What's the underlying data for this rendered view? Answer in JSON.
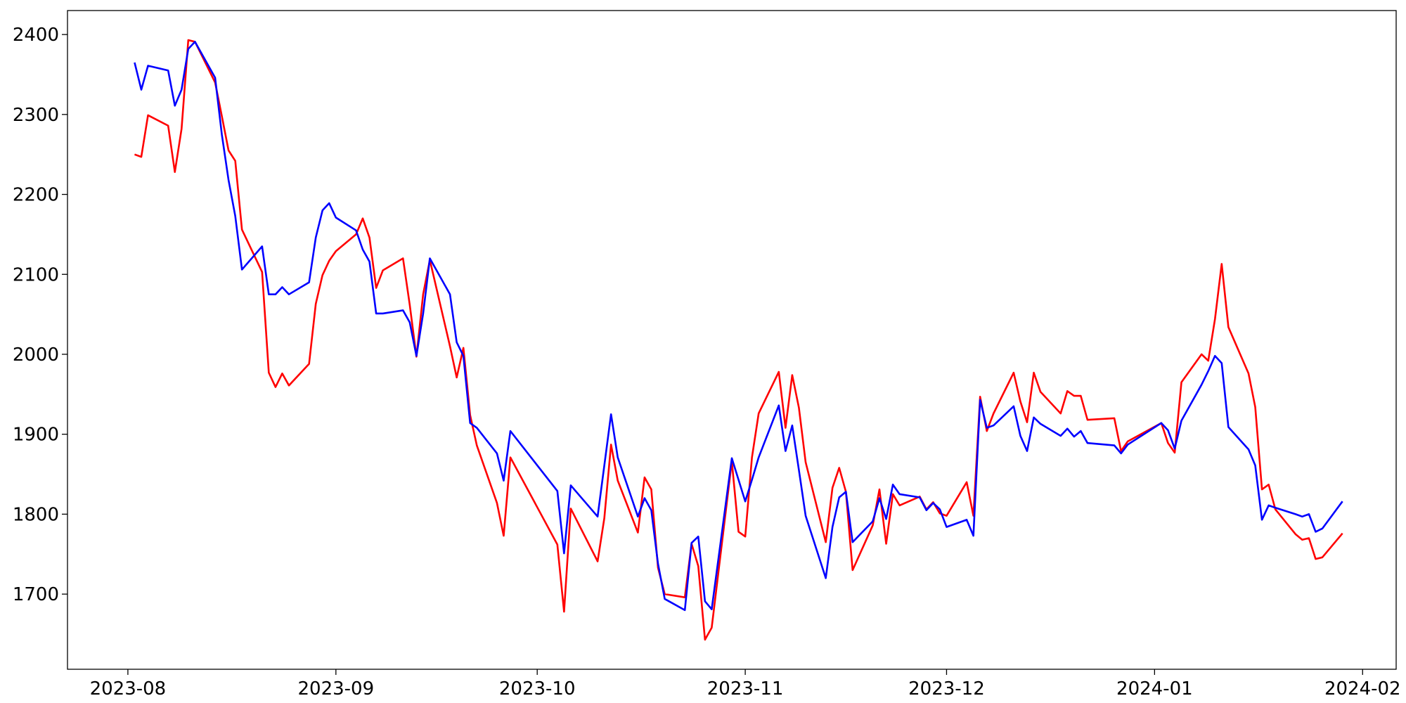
{
  "chart_data": {
    "type": "line",
    "x": [
      "2023-08-02",
      "2023-08-03",
      "2023-08-04",
      "2023-08-07",
      "2023-08-08",
      "2023-08-09",
      "2023-08-10",
      "2023-08-11",
      "2023-08-14",
      "2023-08-15",
      "2023-08-16",
      "2023-08-17",
      "2023-08-18",
      "2023-08-21",
      "2023-08-22",
      "2023-08-23",
      "2023-08-24",
      "2023-08-25",
      "2023-08-28",
      "2023-08-29",
      "2023-08-30",
      "2023-08-31",
      "2023-09-01",
      "2023-09-04",
      "2023-09-05",
      "2023-09-06",
      "2023-09-07",
      "2023-09-08",
      "2023-09-11",
      "2023-09-12",
      "2023-09-13",
      "2023-09-14",
      "2023-09-15",
      "2023-09-18",
      "2023-09-19",
      "2023-09-20",
      "2023-09-21",
      "2023-09-22",
      "2023-09-25",
      "2023-09-26",
      "2023-09-27",
      "2023-10-04",
      "2023-10-05",
      "2023-10-06",
      "2023-10-10",
      "2023-10-11",
      "2023-10-12",
      "2023-10-13",
      "2023-10-16",
      "2023-10-17",
      "2023-10-18",
      "2023-10-19",
      "2023-10-20",
      "2023-10-23",
      "2023-10-24",
      "2023-10-25",
      "2023-10-26",
      "2023-10-27",
      "2023-10-30",
      "2023-10-31",
      "2023-11-01",
      "2023-11-02",
      "2023-11-03",
      "2023-11-06",
      "2023-11-07",
      "2023-11-08",
      "2023-11-09",
      "2023-11-10",
      "2023-11-13",
      "2023-11-14",
      "2023-11-15",
      "2023-11-16",
      "2023-11-17",
      "2023-11-20",
      "2023-11-21",
      "2023-11-22",
      "2023-11-23",
      "2023-11-24",
      "2023-11-27",
      "2023-11-28",
      "2023-11-29",
      "2023-11-30",
      "2023-12-01",
      "2023-12-04",
      "2023-12-05",
      "2023-12-06",
      "2023-12-07",
      "2023-12-08",
      "2023-12-11",
      "2023-12-12",
      "2023-12-13",
      "2023-12-14",
      "2023-12-15",
      "2023-12-18",
      "2023-12-19",
      "2023-12-20",
      "2023-12-21",
      "2023-12-22",
      "2023-12-26",
      "2023-12-27",
      "2023-12-28",
      "2024-01-02",
      "2024-01-03",
      "2024-01-04",
      "2024-01-05",
      "2024-01-08",
      "2024-01-09",
      "2024-01-10",
      "2024-01-11",
      "2024-01-12",
      "2024-01-15",
      "2024-01-16",
      "2024-01-17",
      "2024-01-18",
      "2024-01-19",
      "2024-01-22",
      "2024-01-23",
      "2024-01-24",
      "2024-01-25",
      "2024-01-26",
      "2024-01-29"
    ],
    "series": [
      {
        "color": "#ff0000",
        "values": [
          2250,
          2247,
          2299,
          2286,
          2228,
          2282,
          2393,
          2391,
          2340,
          2298,
          2255,
          2242,
          2156,
          2103,
          1977,
          1959,
          1976,
          1961,
          1988,
          2063,
          2099,
          2117,
          2129,
          2150,
          2170,
          2146,
          2083,
          2105,
          2120,
          2062,
          1997,
          2075,
          2118,
          2010,
          1971,
          2008,
          1924,
          1886,
          1814,
          1773,
          1871,
          1762,
          1678,
          1807,
          1741,
          1795,
          1887,
          1842,
          1777,
          1846,
          1831,
          1733,
          1700,
          1696,
          1763,
          1735,
          1643,
          1658,
          1866,
          1778,
          1772,
          1871,
          1926,
          1978,
          1908,
          1974,
          1933,
          1865,
          1765,
          1833,
          1858,
          1828,
          1730,
          1786,
          1831,
          1763,
          1825,
          1811,
          1822,
          1806,
          1815,
          1801,
          1798,
          1840,
          1798,
          1947,
          1904,
          1926,
          1977,
          1941,
          1915,
          1977,
          1953,
          1926,
          1954,
          1948,
          1948,
          1918,
          1920,
          1879,
          1891,
          1914,
          1889,
          1877,
          1965,
          2000,
          1992,
          2044,
          2113,
          2034,
          1976,
          1934,
          1831,
          1837,
          1806,
          1775,
          1768,
          1770,
          1744,
          1746,
          1776
        ]
      },
      {
        "color": "#0000ff",
        "values": [
          2365,
          2331,
          2361,
          2355,
          2311,
          2331,
          2382,
          2391,
          2346,
          2275,
          2218,
          2173,
          2106,
          2135,
          2075,
          2075,
          2084,
          2075,
          2090,
          2146,
          2180,
          2189,
          2171,
          2155,
          2131,
          2116,
          2051,
          2051,
          2055,
          2040,
          1998,
          2051,
          2120,
          2075,
          2015,
          1998,
          1914,
          1908,
          1876,
          1842,
          1904,
          1829,
          1751,
          1836,
          1797,
          1861,
          1925,
          1871,
          1797,
          1820,
          1805,
          1738,
          1694,
          1680,
          1764,
          1772,
          1691,
          1681,
          1870,
          1843,
          1816,
          1843,
          1871,
          1936,
          1879,
          1911,
          1855,
          1798,
          1720,
          1784,
          1821,
          1828,
          1765,
          1791,
          1820,
          1794,
          1837,
          1825,
          1821,
          1805,
          1814,
          1806,
          1784,
          1793,
          1773,
          1943,
          1908,
          1911,
          1935,
          1898,
          1879,
          1921,
          1913,
          1898,
          1907,
          1897,
          1904,
          1889,
          1886,
          1876,
          1887,
          1914,
          1905,
          1882,
          1917,
          1962,
          1979,
          1998,
          1989,
          1909,
          1881,
          1861,
          1793,
          1811,
          1808,
          1800,
          1797,
          1800,
          1778,
          1782,
          1816
        ]
      }
    ],
    "xlim": [
      "2023-07-23",
      "2024-02-06"
    ],
    "xticks": [
      {
        "value": "2023-08-01",
        "label": "2023-08"
      },
      {
        "value": "2023-09-01",
        "label": "2023-09"
      },
      {
        "value": "2023-10-01",
        "label": "2023-10"
      },
      {
        "value": "2023-11-01",
        "label": "2023-11"
      },
      {
        "value": "2023-12-01",
        "label": "2023-12"
      },
      {
        "value": "2024-01-01",
        "label": "2024-01"
      },
      {
        "value": "2024-02-01",
        "label": "2024-02"
      }
    ],
    "ylim": [
      1606,
      2430
    ],
    "yticks": [
      1700,
      1800,
      1900,
      2000,
      2100,
      2200,
      2300,
      2400
    ],
    "grid": false
  }
}
